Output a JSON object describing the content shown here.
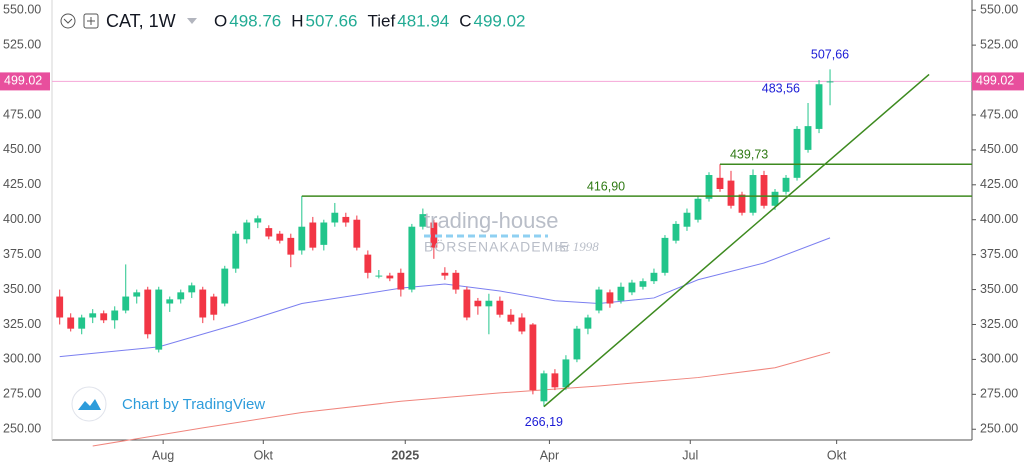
{
  "chart_data": {
    "type": "candlestick",
    "header": {
      "symbol": "CAT, 1W",
      "fields": [
        "O",
        "H",
        "Tief",
        "C"
      ]
    },
    "watermark": {
      "brand": "trading-house",
      "sub": "BÖRSENAKADEMIE",
      "since": "est 1998"
    },
    "credit": "Chart by TradingView",
    "up_color": "#22c58b",
    "down_color": "#f23645",
    "ohlc": [
      [
        345,
        350,
        325,
        330
      ],
      [
        330,
        333,
        320,
        322
      ],
      [
        322,
        332,
        318,
        330
      ],
      [
        330,
        336,
        326,
        333
      ],
      [
        333,
        335,
        326,
        328
      ],
      [
        328,
        338,
        322,
        335
      ],
      [
        335,
        368,
        333,
        345
      ],
      [
        345,
        350,
        340,
        348
      ],
      [
        350,
        352,
        315,
        318
      ],
      [
        307,
        352,
        305,
        350
      ],
      [
        340,
        345,
        334,
        343
      ],
      [
        343,
        350,
        340,
        348
      ],
      [
        348,
        355,
        344,
        353
      ],
      [
        350,
        352,
        326,
        330
      ],
      [
        345,
        347,
        328,
        332
      ],
      [
        340,
        367,
        338,
        365
      ],
      [
        365,
        392,
        362,
        390
      ],
      [
        386,
        400,
        383,
        398
      ],
      [
        398,
        403,
        394,
        401
      ],
      [
        394,
        396,
        386,
        388
      ],
      [
        390,
        392,
        383,
        385
      ],
      [
        387,
        390,
        366,
        375
      ],
      [
        378,
        417,
        375,
        395
      ],
      [
        398,
        402,
        378,
        380
      ],
      [
        382,
        400,
        378,
        398
      ],
      [
        398,
        412,
        395,
        405
      ],
      [
        402,
        405,
        395,
        398
      ],
      [
        400,
        403,
        378,
        380
      ],
      [
        375,
        378,
        358,
        362
      ],
      [
        360,
        364,
        358,
        360
      ],
      [
        360,
        362,
        356,
        358
      ],
      [
        362,
        365,
        345,
        350
      ],
      [
        350,
        397,
        348,
        395
      ],
      [
        395,
        408,
        393,
        404
      ],
      [
        398,
        400,
        372,
        380
      ],
      [
        362,
        366,
        357,
        360
      ],
      [
        362,
        364,
        347,
        350
      ],
      [
        350,
        352,
        328,
        330
      ],
      [
        342,
        344,
        332,
        338
      ],
      [
        338,
        347,
        318,
        342
      ],
      [
        342,
        345,
        330,
        332
      ],
      [
        332,
        336,
        325,
        327
      ],
      [
        330,
        333,
        318,
        320
      ],
      [
        325,
        326,
        275,
        278
      ],
      [
        270,
        292,
        266.19,
        290
      ],
      [
        290,
        293,
        278,
        280
      ],
      [
        280,
        303,
        278,
        300
      ],
      [
        300,
        324,
        298,
        322
      ],
      [
        322,
        332,
        318,
        330
      ],
      [
        335,
        352,
        333,
        350
      ],
      [
        348,
        350,
        337,
        340
      ],
      [
        342,
        355,
        340,
        352
      ],
      [
        348,
        357,
        346,
        355
      ],
      [
        352,
        358,
        350,
        356
      ],
      [
        356,
        365,
        354,
        362
      ],
      [
        362,
        389,
        360,
        387
      ],
      [
        385,
        399,
        383,
        397
      ],
      [
        395,
        408,
        392,
        405
      ],
      [
        400,
        417,
        398,
        415
      ],
      [
        415,
        434,
        413,
        432
      ],
      [
        430,
        439.73,
        420,
        422
      ],
      [
        428,
        435,
        408,
        410
      ],
      [
        418,
        420,
        403,
        405
      ],
      [
        405,
        436,
        403,
        432
      ],
      [
        432,
        435,
        408,
        410
      ],
      [
        410,
        422,
        407,
        420
      ],
      [
        420,
        432,
        418,
        430
      ],
      [
        430,
        467,
        428,
        465
      ],
      [
        450,
        483.56,
        448,
        467
      ],
      [
        465,
        500,
        462,
        497
      ],
      [
        498.76,
        507.66,
        481.94,
        499.02
      ]
    ],
    "moving_averages": [
      {
        "color": "#7b7ff0",
        "x": [
          0,
          9,
          16,
          22,
          31,
          35,
          40,
          45,
          49,
          54,
          58,
          64,
          70
        ],
        "values": [
          302,
          309,
          325,
          340,
          351,
          354,
          349,
          342,
          340,
          344,
          357,
          369,
          387
        ]
      },
      {
        "color": "#f0857d",
        "x": [
          3,
          13,
          22,
          31,
          40,
          49,
          58,
          65,
          70
        ],
        "values": [
          238,
          251,
          262,
          270,
          276,
          281,
          287,
          294,
          305
        ]
      }
    ],
    "levels": [
      {
        "value": 416.9,
        "label": "416,90",
        "start": 22
      },
      {
        "value": 439.73,
        "label": "439,73",
        "start": 60
      }
    ],
    "trendline": {
      "x": [
        44,
        79
      ],
      "values": [
        266.19,
        504
      ]
    },
    "annotations": [
      {
        "x": 70,
        "value": 507.66,
        "label": "507,66"
      },
      {
        "x": 68,
        "value": 483.56,
        "label": "483,56"
      },
      {
        "x": 44,
        "value": 266.19,
        "label": "266,19"
      }
    ],
    "xlim": [
      -0.7,
      82.9
    ],
    "xticks": [
      {
        "value": 9.4,
        "label": "Aug"
      },
      {
        "value": 18.5,
        "label": "Okt"
      },
      {
        "value": 31.4,
        "label": "2025",
        "bold": true
      },
      {
        "value": 44.5,
        "label": "Apr"
      },
      {
        "value": 57.3,
        "label": "Jul"
      },
      {
        "value": 70.6,
        "label": "Okt"
      }
    ],
    "ylim": [
      242.3,
      557.3
    ],
    "yticks": [
      {
        "value": 250,
        "label": "250.00"
      },
      {
        "value": 275,
        "label": "275.00"
      },
      {
        "value": 300,
        "label": "300.00"
      },
      {
        "value": 325,
        "label": "325.00"
      },
      {
        "value": 350,
        "label": "350.00"
      },
      {
        "value": 375,
        "label": "375.00"
      },
      {
        "value": 400,
        "label": "400.00"
      },
      {
        "value": 425,
        "label": "425.00"
      },
      {
        "value": 450,
        "label": "450.00"
      },
      {
        "value": 475,
        "label": "475.00"
      },
      {
        "value": 500,
        "label": "500.00"
      },
      {
        "value": 525,
        "label": "525.00"
      },
      {
        "value": 550,
        "label": "550.00"
      }
    ]
  }
}
